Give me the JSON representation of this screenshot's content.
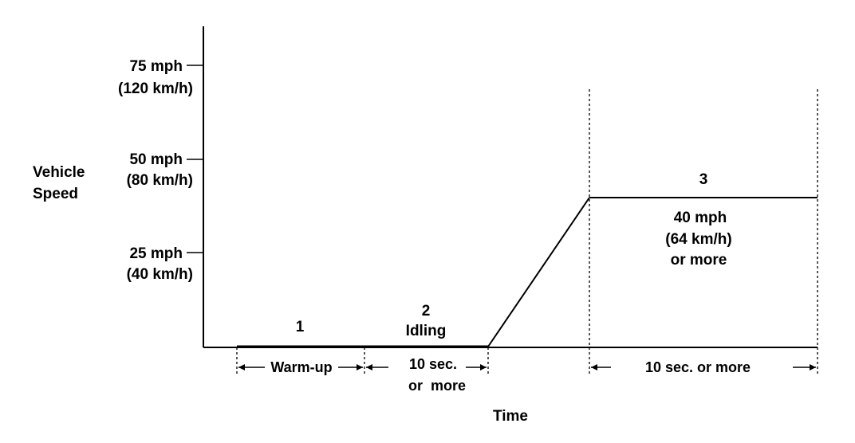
{
  "y_axis": {
    "label_line1": "Vehicle",
    "label_line2": "Speed",
    "ticks": [
      {
        "mph": "75 mph",
        "kmh": "(120 km/h)"
      },
      {
        "mph": "50 mph",
        "kmh": "(80 km/h)"
      },
      {
        "mph": "25 mph",
        "kmh": "(40 km/h)"
      }
    ]
  },
  "x_axis": {
    "label": "Time"
  },
  "phases": {
    "phase1": {
      "number": "1",
      "duration": "Warm-up"
    },
    "phase2": {
      "number": "2",
      "name": "Idling",
      "duration_line1": "10 sec.",
      "duration_line2": "or  more"
    },
    "phase3": {
      "number": "3",
      "speed_line1": "40 mph",
      "speed_line2": "(64 km/h)",
      "speed_line3": "or more",
      "duration": "10 sec. or more"
    }
  }
}
